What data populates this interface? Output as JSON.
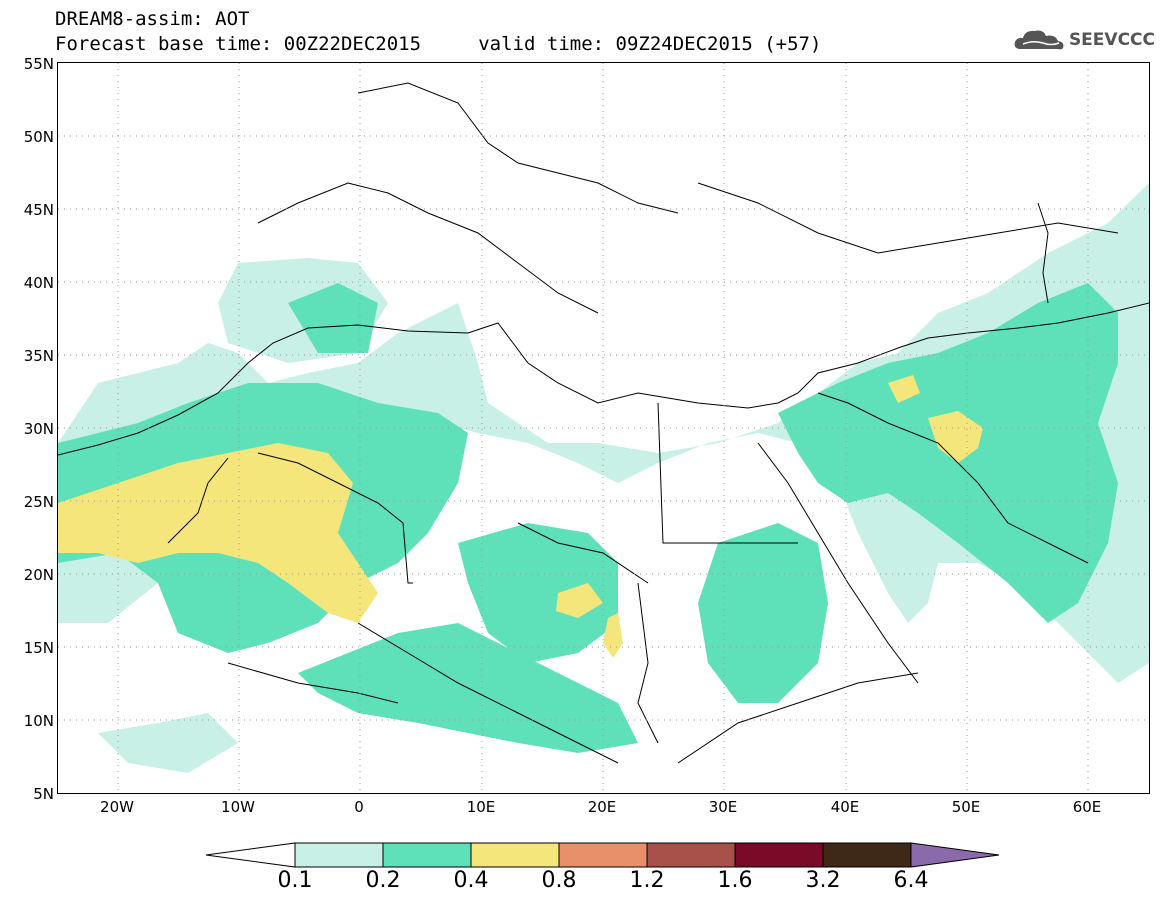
{
  "header": {
    "product": "DREAM8-assim: AOT",
    "times": "Forecast base time: 00Z22DEC2015     valid time: 09Z24DEC2015 (+57)",
    "logo_text": "SEEVCCC"
  },
  "map": {
    "lat_labels": [
      "55N",
      "50N",
      "45N",
      "40N",
      "35N",
      "30N",
      "25N",
      "20N",
      "15N",
      "10N",
      "5N"
    ],
    "lon_labels": [
      "20W",
      "10W",
      "0",
      "10E",
      "20E",
      "30E",
      "40E",
      "50E",
      "60E"
    ],
    "extent": {
      "lon_min": -25,
      "lon_max": 65,
      "lat_min": 5,
      "lat_max": 55
    },
    "field": "Aerosol optical thickness"
  },
  "colorbar": {
    "labels": [
      "0.1",
      "0.2",
      "0.4",
      "0.8",
      "1.2",
      "1.6",
      "3.2",
      "6.4"
    ],
    "colors": [
      "#ffffff",
      "#c8f0e6",
      "#5ee0b8",
      "#f5e67c",
      "#e8906a",
      "#a8504a",
      "#7a0a28",
      "#3e2818",
      "#8a6aaa"
    ]
  }
}
